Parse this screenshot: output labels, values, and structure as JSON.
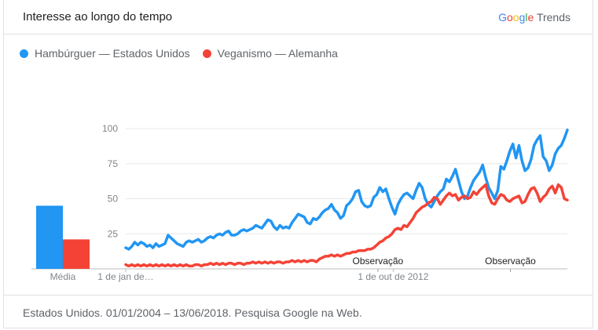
{
  "header": {
    "title": "Interesse ao longo do tempo",
    "brand_letters": [
      {
        "ch": "G",
        "color": "#4285F4"
      },
      {
        "ch": "o",
        "color": "#EA4335"
      },
      {
        "ch": "o",
        "color": "#FBBC05"
      },
      {
        "ch": "g",
        "color": "#4285F4"
      },
      {
        "ch": "l",
        "color": "#34A853"
      },
      {
        "ch": "e",
        "color": "#EA4335"
      }
    ],
    "brand_suffix": "Trends"
  },
  "footer": {
    "note": "Estados Unidos. 01/01/2004 – 13/06/2018. Pesquisa Google na Web."
  },
  "chart_data": {
    "type": "line",
    "ylim": [
      0,
      100
    ],
    "yticks": [
      25,
      50,
      75,
      100
    ],
    "xlim": [
      "2004-01-01",
      "2018-06-13"
    ],
    "xtick_labels": [
      {
        "x": "2004-01-01",
        "label": "1 de jan de…"
      },
      {
        "x": "2012-10-01",
        "label": "1 de out de 2012"
      }
    ],
    "annotations": [
      {
        "x": "2012-04-01",
        "label": "Observação"
      },
      {
        "x": "2016-08-01",
        "label": "Observação"
      }
    ],
    "average_bars": {
      "label": "Média",
      "values": [
        45,
        21
      ]
    },
    "series": [
      {
        "name": "Hambúrguer — Estados Unidos",
        "color": "#2196F3",
        "values": [
          15,
          14,
          16,
          19,
          17,
          19,
          18,
          16,
          17,
          15,
          18,
          16,
          17,
          18,
          24,
          22,
          20,
          18,
          17,
          16,
          19,
          20,
          19,
          20,
          21,
          19,
          20,
          22,
          23,
          22,
          24,
          25,
          24,
          26,
          27,
          24,
          24,
          25,
          27,
          28,
          27,
          28,
          29,
          31,
          30,
          29,
          32,
          35,
          34,
          30,
          28,
          31,
          29,
          30,
          29,
          33,
          36,
          39,
          38,
          37,
          33,
          32,
          36,
          35,
          37,
          40,
          42,
          43,
          46,
          42,
          40,
          36,
          38,
          45,
          47,
          50,
          55,
          56,
          48,
          45,
          44,
          45,
          51,
          53,
          58,
          55,
          57,
          50,
          44,
          39,
          46,
          50,
          53,
          54,
          52,
          50,
          56,
          61,
          58,
          50,
          46,
          44,
          48,
          52,
          55,
          57,
          64,
          62,
          66,
          71,
          63,
          55,
          50,
          52,
          58,
          63,
          66,
          69,
          74,
          65,
          58,
          54,
          50,
          56,
          73,
          71,
          77,
          84,
          89,
          79,
          88,
          77,
          70,
          72,
          78,
          88,
          92,
          95,
          80,
          77,
          70,
          74,
          82,
          86,
          88,
          93,
          99
        ]
      },
      {
        "name": "Veganismo — Alemanha",
        "color": "#F44336",
        "values": [
          3,
          2,
          3,
          2,
          3,
          2,
          3,
          2,
          3,
          2,
          3,
          2,
          3,
          2,
          3,
          2,
          3,
          2,
          3,
          2,
          3,
          2,
          2,
          3,
          3,
          2,
          3,
          3,
          4,
          3,
          4,
          3,
          4,
          3,
          4,
          4,
          3,
          4,
          4,
          3,
          4,
          4,
          5,
          4,
          5,
          4,
          5,
          4,
          5,
          4,
          5,
          5,
          4,
          5,
          5,
          6,
          5,
          6,
          5,
          6,
          5,
          6,
          6,
          5,
          7,
          8,
          9,
          9,
          10,
          9,
          10,
          9,
          10,
          11,
          11,
          12,
          12,
          13,
          13,
          13,
          14,
          14,
          15,
          17,
          19,
          20,
          22,
          23,
          25,
          28,
          29,
          28,
          31,
          30,
          33,
          36,
          40,
          42,
          44,
          45,
          47,
          48,
          51,
          50,
          46,
          49,
          52,
          54,
          52,
          53,
          49,
          51,
          52,
          50,
          51,
          55,
          53,
          56,
          58,
          60,
          52,
          47,
          46,
          50,
          53,
          52,
          49,
          48,
          50,
          51,
          52,
          47,
          48,
          53,
          57,
          58,
          54,
          48,
          51,
          53,
          57,
          59,
          54,
          60,
          58,
          50,
          49
        ]
      }
    ]
  }
}
